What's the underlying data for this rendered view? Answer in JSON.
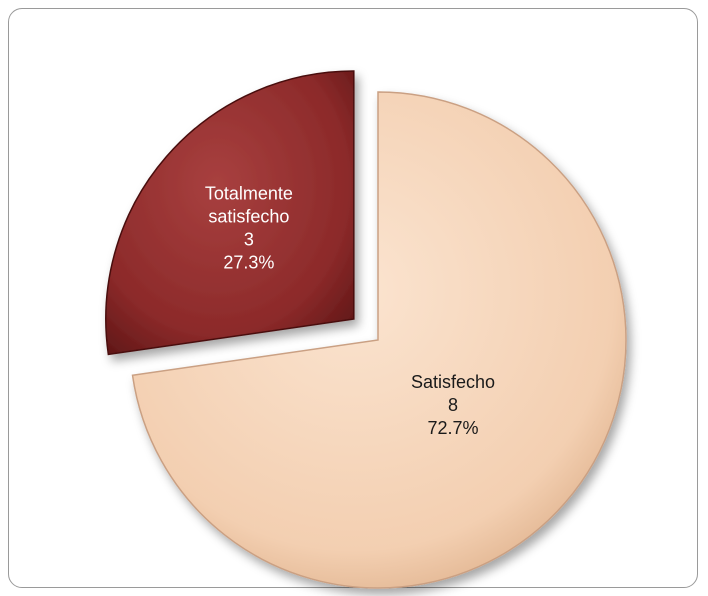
{
  "chart_data": {
    "type": "pie",
    "title": "",
    "legend": "none",
    "slices": [
      {
        "name": "Totalmente satisfecho",
        "name_lines": [
          "Totalmente",
          "satisfecho"
        ],
        "value": 3,
        "percent": "27.3%",
        "color": "#8c2a2a",
        "label_color": "#ffffff",
        "exploded": true
      },
      {
        "name": "Satisfecho",
        "name_lines": [
          "Satisfecho"
        ],
        "value": 8,
        "percent": "72.7%",
        "color": "#f3cfb1",
        "label_color": "#1a1a1a",
        "exploded": false
      }
    ]
  }
}
